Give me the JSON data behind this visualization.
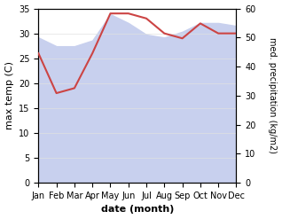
{
  "months": [
    "Jan",
    "Feb",
    "Mar",
    "Apr",
    "May",
    "Jun",
    "Jul",
    "Aug",
    "Sep",
    "Oct",
    "Nov",
    "Dec"
  ],
  "max_temp": [
    26,
    18,
    19,
    26,
    34,
    34,
    33,
    30,
    29,
    32,
    30,
    30
  ],
  "precipitation": [
    50,
    47,
    47,
    49,
    58,
    55,
    51,
    50,
    52,
    55,
    55,
    54
  ],
  "temp_color": "#cc4444",
  "precip_fill_color": "#c8d0ee",
  "ylim_temp": [
    0,
    35
  ],
  "ylim_precip": [
    0,
    60
  ],
  "xlabel": "date (month)",
  "ylabel_left": "max temp (C)",
  "ylabel_right": "med. precipitation (kg/m2)",
  "temp_yticks": [
    0,
    5,
    10,
    15,
    20,
    25,
    30,
    35
  ],
  "precip_yticks": [
    0,
    10,
    20,
    30,
    40,
    50,
    60
  ]
}
